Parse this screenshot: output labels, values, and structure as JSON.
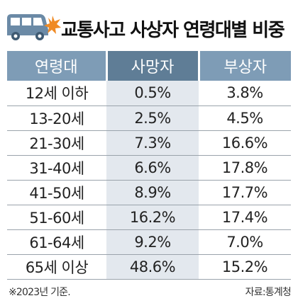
{
  "icon": "car-crash-icon",
  "colors": {
    "header_bg": "#7e9cb6",
    "header_highlight_bg": "#5f7d96",
    "highlight_column_bg": "#e3e8ee",
    "car": "#6b8aa6",
    "crash_burst": "#f08a24"
  },
  "chart_data": {
    "type": "table",
    "title": "교통사고 사상자 연령대별 비중",
    "columns": [
      "연령대",
      "사망자",
      "부상자"
    ],
    "highlight_column": 1,
    "rows": [
      [
        "12세 이하",
        "0.5%",
        "3.8%"
      ],
      [
        "13-20세",
        "2.5%",
        "4.5%"
      ],
      [
        "21-30세",
        "7.3%",
        "16.6%"
      ],
      [
        "31-40세",
        "6.6%",
        "17.8%"
      ],
      [
        "41-50세",
        "8.9%",
        "17.7%"
      ],
      [
        "51-60세",
        "16.2%",
        "17.4%"
      ],
      [
        "61-64세",
        "9.2%",
        "7.0%"
      ],
      [
        "65세 이상",
        "48.6%",
        "15.2%"
      ]
    ],
    "note": "※2023년 기준.",
    "source": "자료:통계청"
  }
}
